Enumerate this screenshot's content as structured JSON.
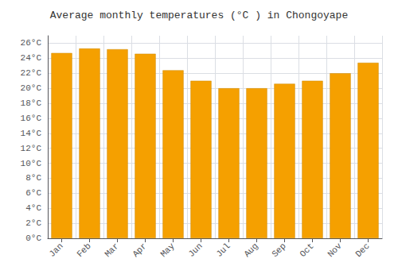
{
  "chart_data": {
    "type": "bar",
    "title": "Average monthly temperatures (°C ) in Chongoyape",
    "categories": [
      "Jan",
      "Feb",
      "Mar",
      "Apr",
      "May",
      "Jun",
      "Jul",
      "Aug",
      "Sep",
      "Oct",
      "Nov",
      "Dec"
    ],
    "values": [
      24.7,
      25.3,
      25.2,
      24.6,
      22.4,
      21.0,
      20.0,
      20.0,
      20.6,
      21.0,
      22.0,
      23.4
    ],
    "color": "#F5A000",
    "ylim": [
      0,
      27
    ],
    "yticks": [
      {
        "value": 0,
        "label": "0°C"
      },
      {
        "value": 2,
        "label": "2°C"
      },
      {
        "value": 4,
        "label": "4°C"
      },
      {
        "value": 6,
        "label": "6°C"
      },
      {
        "value": 8,
        "label": "8°C"
      },
      {
        "value": 10,
        "label": "10°C"
      },
      {
        "value": 12,
        "label": "12°C"
      },
      {
        "value": 14,
        "label": "14°C"
      },
      {
        "value": 16,
        "label": "16°C"
      },
      {
        "value": 18,
        "label": "18°C"
      },
      {
        "value": 20,
        "label": "20°C"
      },
      {
        "value": 22,
        "label": "22°C"
      },
      {
        "value": 24,
        "label": "24°C"
      },
      {
        "value": 26,
        "label": "26°C"
      }
    ],
    "grid": true
  }
}
